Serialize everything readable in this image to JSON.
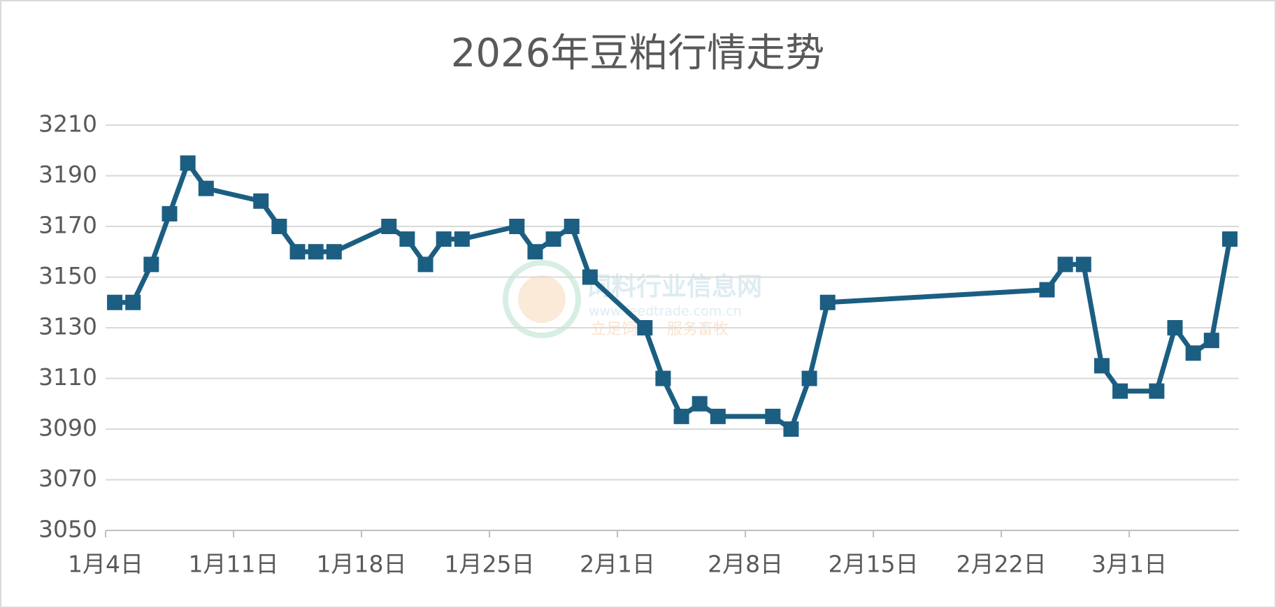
{
  "chart_data": {
    "type": "line",
    "title": "2026年豆粕行情走势",
    "x": [
      "01-04",
      "01-05",
      "01-06",
      "01-07",
      "01-08",
      "01-09",
      "01-12",
      "01-13",
      "01-14",
      "01-15",
      "01-16",
      "01-19",
      "01-20",
      "01-21",
      "01-22",
      "01-23",
      "01-26",
      "01-27",
      "01-28",
      "01-29",
      "01-30",
      "02-02",
      "02-03",
      "02-04",
      "02-05",
      "02-06",
      "02-09",
      "02-10",
      "02-11",
      "02-12",
      "02-24",
      "02-25",
      "02-26",
      "02-27",
      "02-28",
      "03-02",
      "03-03",
      "03-04",
      "03-05",
      "03-06"
    ],
    "series": [
      {
        "color": "#1b5e82",
        "values": [
          3140,
          3140,
          3155,
          3175,
          3195,
          3185,
          3180,
          3170,
          3160,
          3160,
          3160,
          3170,
          3165,
          3155,
          3165,
          3165,
          3170,
          3160,
          3165,
          3170,
          3150,
          3130,
          3110,
          3095,
          3100,
          3095,
          3095,
          3090,
          3110,
          3140,
          3145,
          3155,
          3155,
          3115,
          3105,
          3105,
          3130,
          3120,
          3125,
          3165
        ]
      }
    ],
    "xlim": [
      "01-04",
      "03-07"
    ],
    "xticks": [
      {
        "value": "01-04",
        "label": "1月4日"
      },
      {
        "value": "01-11",
        "label": "1月11日"
      },
      {
        "value": "01-18",
        "label": "1月18日"
      },
      {
        "value": "01-25",
        "label": "1月25日"
      },
      {
        "value": "02-01",
        "label": "2月1日"
      },
      {
        "value": "02-08",
        "label": "2月8日"
      },
      {
        "value": "02-15",
        "label": "2月15日"
      },
      {
        "value": "02-22",
        "label": "2月22日"
      },
      {
        "value": "03-01",
        "label": "3月1日"
      }
    ],
    "ylim": [
      3050,
      3210
    ],
    "yticks": [
      3050,
      3070,
      3090,
      3110,
      3130,
      3150,
      3170,
      3190,
      3210
    ],
    "grid": true
  },
  "watermark": {
    "name": "饲料行业信息网",
    "url": "www.feedtrade.com.cn",
    "slogan": "立足饲料   服务畜牧"
  }
}
